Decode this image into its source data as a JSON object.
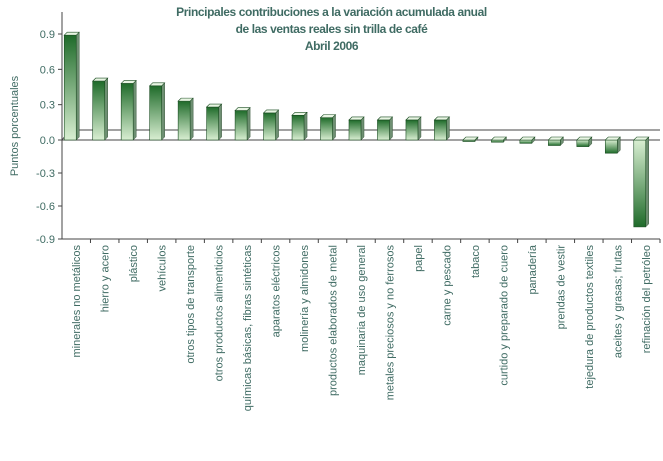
{
  "chart_data": {
    "type": "bar",
    "title_lines": [
      "Principales contribuciones a la variación acumulada anual",
      "de las ventas reales sin trilla de café",
      "Abril 2006"
    ],
    "xlabel": "",
    "ylabel": "Puntos porcentuales",
    "ylim": [
      -0.9,
      0.9
    ],
    "yticks": [
      {
        "value": 0.9,
        "label": "0.9"
      },
      {
        "value": 0.6,
        "label": "0.6"
      },
      {
        "value": 0.3,
        "label": "0.3"
      },
      {
        "value": 0.0,
        "label": "0.0"
      },
      {
        "value": -0.3,
        "label": "-0.3"
      },
      {
        "value": -0.6,
        "label": "-0.6"
      },
      {
        "value": -0.9,
        "label": "-0.9"
      }
    ],
    "categories": [
      "minerales no metálicos",
      "hierro y acero",
      "plástico",
      "vehículos",
      "otros tipos de transporte",
      "otros productos alimenticios",
      "químicas básicas, fibras sintéticas",
      "aparatos eléctricos",
      "molinería y almidones",
      "productos elaborados de metal",
      "maquinaria de uso general",
      "metales preciosos y  no ferrosos",
      "papel",
      "carne y pescado",
      "tabaco",
      "curtido y preparado de cuero",
      "panadería",
      "prendas de vestir",
      "tejedura de productos textiles",
      "aceites y grasas; frutas",
      "refinación del petróleo"
    ],
    "values": [
      0.89,
      0.5,
      0.48,
      0.46,
      0.33,
      0.28,
      0.25,
      0.23,
      0.21,
      0.19,
      0.17,
      0.17,
      0.17,
      0.17,
      -0.01,
      -0.02,
      -0.03,
      -0.05,
      -0.06,
      -0.12,
      -0.79
    ],
    "grid": false,
    "legend": "none",
    "colors": {
      "bar_dark": "#1f6b2a",
      "bar_light": "#d9efd2",
      "bar_top": "#e8f5e3",
      "axis": "#444444",
      "text": "#3f6b63"
    }
  }
}
